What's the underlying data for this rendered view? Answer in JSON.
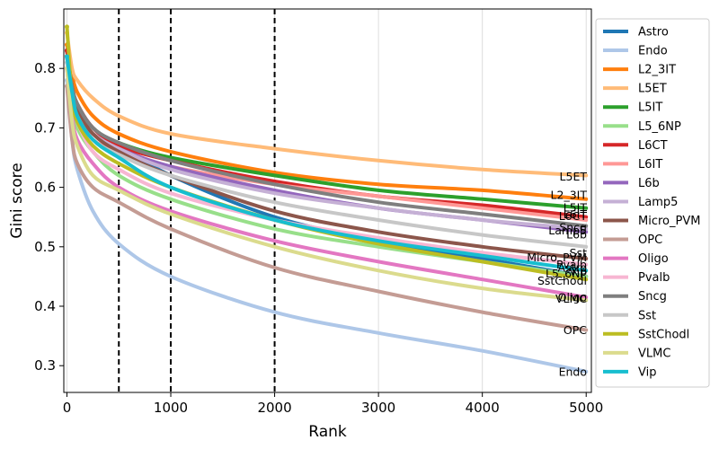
{
  "chart_data": {
    "type": "line",
    "title": "",
    "xlabel": "Rank",
    "ylabel": "Gini score",
    "xlim": [
      -30,
      5050
    ],
    "ylim": [
      0.255,
      0.9
    ],
    "xticks": [
      0,
      1000,
      2000,
      3000,
      4000,
      5000
    ],
    "xtick_labels": [
      "0",
      "1000",
      "2000",
      "3000",
      "4000",
      "5000"
    ],
    "yticks": [
      0.3,
      0.4,
      0.5,
      0.6,
      0.7,
      0.8
    ],
    "ytick_labels": [
      "0.3",
      "0.4",
      "0.5",
      "0.6",
      "0.7",
      "0.8"
    ],
    "vlines": [
      500,
      1000,
      2000
    ],
    "grid": "x",
    "legend_position": "outside-right",
    "x": [
      0,
      50,
      100,
      250,
      500,
      1000,
      2000,
      3000,
      4000,
      5000
    ],
    "series": [
      {
        "name": "Astro",
        "color": "#1f77b4",
        "values": [
          0.83,
          0.77,
          0.74,
          0.7,
          0.67,
          0.62,
          0.55,
          0.51,
          0.48,
          0.45
        ],
        "end_label": "Astro"
      },
      {
        "name": "Endo",
        "color": "#aec7e8",
        "values": [
          0.78,
          0.68,
          0.63,
          0.56,
          0.505,
          0.45,
          0.39,
          0.355,
          0.325,
          0.29
        ],
        "end_label": "Endo"
      },
      {
        "name": "L2_3IT",
        "color": "#ff7f0e",
        "values": [
          0.84,
          0.79,
          0.76,
          0.72,
          0.69,
          0.66,
          0.625,
          0.605,
          0.595,
          0.58
        ],
        "end_label": "L2_3IT"
      },
      {
        "name": "L5ET",
        "color": "#ffbb78",
        "values": [
          0.86,
          0.8,
          0.78,
          0.75,
          0.72,
          0.69,
          0.665,
          0.645,
          0.63,
          0.62
        ],
        "end_label": "L5ET"
      },
      {
        "name": "L5IT",
        "color": "#2ca02c",
        "values": [
          0.83,
          0.77,
          0.74,
          0.7,
          0.675,
          0.65,
          0.62,
          0.595,
          0.58,
          0.565
        ],
        "end_label": "L5IT"
      },
      {
        "name": "L5_6NP",
        "color": "#98df8a",
        "values": [
          0.82,
          0.74,
          0.7,
          0.66,
          0.62,
          0.58,
          0.53,
          0.5,
          0.475,
          0.45
        ],
        "end_label": "L5_6NP"
      },
      {
        "name": "L6CT",
        "color": "#d62728",
        "values": [
          0.83,
          0.77,
          0.74,
          0.7,
          0.67,
          0.645,
          0.61,
          0.585,
          0.57,
          0.55
        ],
        "end_label": "L6CT"
      },
      {
        "name": "L6IT",
        "color": "#ff9896",
        "values": [
          0.82,
          0.75,
          0.72,
          0.68,
          0.66,
          0.635,
          0.605,
          0.585,
          0.565,
          0.545
        ],
        "end_label": "L6IT"
      },
      {
        "name": "L6b",
        "color": "#9467bd",
        "values": [
          0.82,
          0.76,
          0.73,
          0.69,
          0.665,
          0.635,
          0.595,
          0.565,
          0.545,
          0.525
        ],
        "end_label": "L6b"
      },
      {
        "name": "Lamp5",
        "color": "#c5b0d5",
        "values": [
          0.8,
          0.75,
          0.72,
          0.69,
          0.665,
          0.63,
          0.59,
          0.565,
          0.545,
          0.53
        ],
        "end_label": "Lamp5"
      },
      {
        "name": "Micro_PVM",
        "color": "#8c564b",
        "values": [
          0.82,
          0.76,
          0.73,
          0.69,
          0.66,
          0.62,
          0.56,
          0.525,
          0.5,
          0.48
        ],
        "end_label": "Micro_PVM"
      },
      {
        "name": "OPC",
        "color": "#c49c94",
        "values": [
          0.77,
          0.68,
          0.64,
          0.6,
          0.575,
          0.53,
          0.465,
          0.425,
          0.39,
          0.36
        ],
        "end_label": "OPC"
      },
      {
        "name": "Oligo",
        "color": "#e377c2",
        "values": [
          0.8,
          0.72,
          0.68,
          0.64,
          0.6,
          0.56,
          0.51,
          0.475,
          0.445,
          0.415
        ],
        "end_label": "Oligo"
      },
      {
        "name": "Pvalb",
        "color": "#f7b6d2",
        "values": [
          0.8,
          0.74,
          0.71,
          0.66,
          0.63,
          0.59,
          0.545,
          0.515,
          0.49,
          0.47
        ],
        "end_label": "Pvalb"
      },
      {
        "name": "Sncg",
        "color": "#7f7f7f",
        "values": [
          0.82,
          0.77,
          0.74,
          0.7,
          0.675,
          0.645,
          0.605,
          0.575,
          0.555,
          0.535
        ],
        "end_label": "Sncg"
      },
      {
        "name": "Sst",
        "color": "#c7c7c7",
        "values": [
          0.81,
          0.75,
          0.72,
          0.68,
          0.655,
          0.62,
          0.575,
          0.545,
          0.52,
          0.5
        ],
        "end_label": "Sst"
      },
      {
        "name": "SstChodl",
        "color": "#bcbd22",
        "values": [
          0.87,
          0.75,
          0.71,
          0.67,
          0.64,
          0.6,
          0.545,
          0.505,
          0.475,
          0.445
        ],
        "end_label": "SstChodl"
      },
      {
        "name": "VLMC",
        "color": "#dbdb8d",
        "values": [
          0.8,
          0.71,
          0.67,
          0.62,
          0.595,
          0.555,
          0.5,
          0.46,
          0.43,
          0.41
        ],
        "end_label": "VLMC"
      },
      {
        "name": "Vip",
        "color": "#17becf",
        "values": [
          0.82,
          0.76,
          0.72,
          0.68,
          0.65,
          0.6,
          0.545,
          0.51,
          0.485,
          0.46
        ],
        "end_label": "Vip"
      }
    ],
    "end_label_positions": [
      {
        "text": "L5ET",
        "y": 0.618
      },
      {
        "text": "L2_3IT",
        "y": 0.587
      },
      {
        "text": "L5IT",
        "y": 0.566
      },
      {
        "text": "L6IT",
        "y": 0.555
      },
      {
        "text": "L6CT",
        "y": 0.552
      },
      {
        "text": "Sncg",
        "y": 0.533
      },
      {
        "text": "Lamp5",
        "y": 0.528
      },
      {
        "text": "L6b",
        "y": 0.521
      },
      {
        "text": "Sst",
        "y": 0.49
      },
      {
        "text": "Micro_PVM",
        "y": 0.482
      },
      {
        "text": "Pvalb",
        "y": 0.47
      },
      {
        "text": "Astro",
        "y": 0.465
      },
      {
        "text": "L5_6NP",
        "y": 0.455
      },
      {
        "text": "Vip",
        "y": 0.458
      },
      {
        "text": "SstChodl",
        "y": 0.443
      },
      {
        "text": "Oligo",
        "y": 0.415
      },
      {
        "text": "VLMC",
        "y": 0.413
      },
      {
        "text": "OPC",
        "y": 0.36
      },
      {
        "text": "Endo",
        "y": 0.29
      }
    ]
  }
}
